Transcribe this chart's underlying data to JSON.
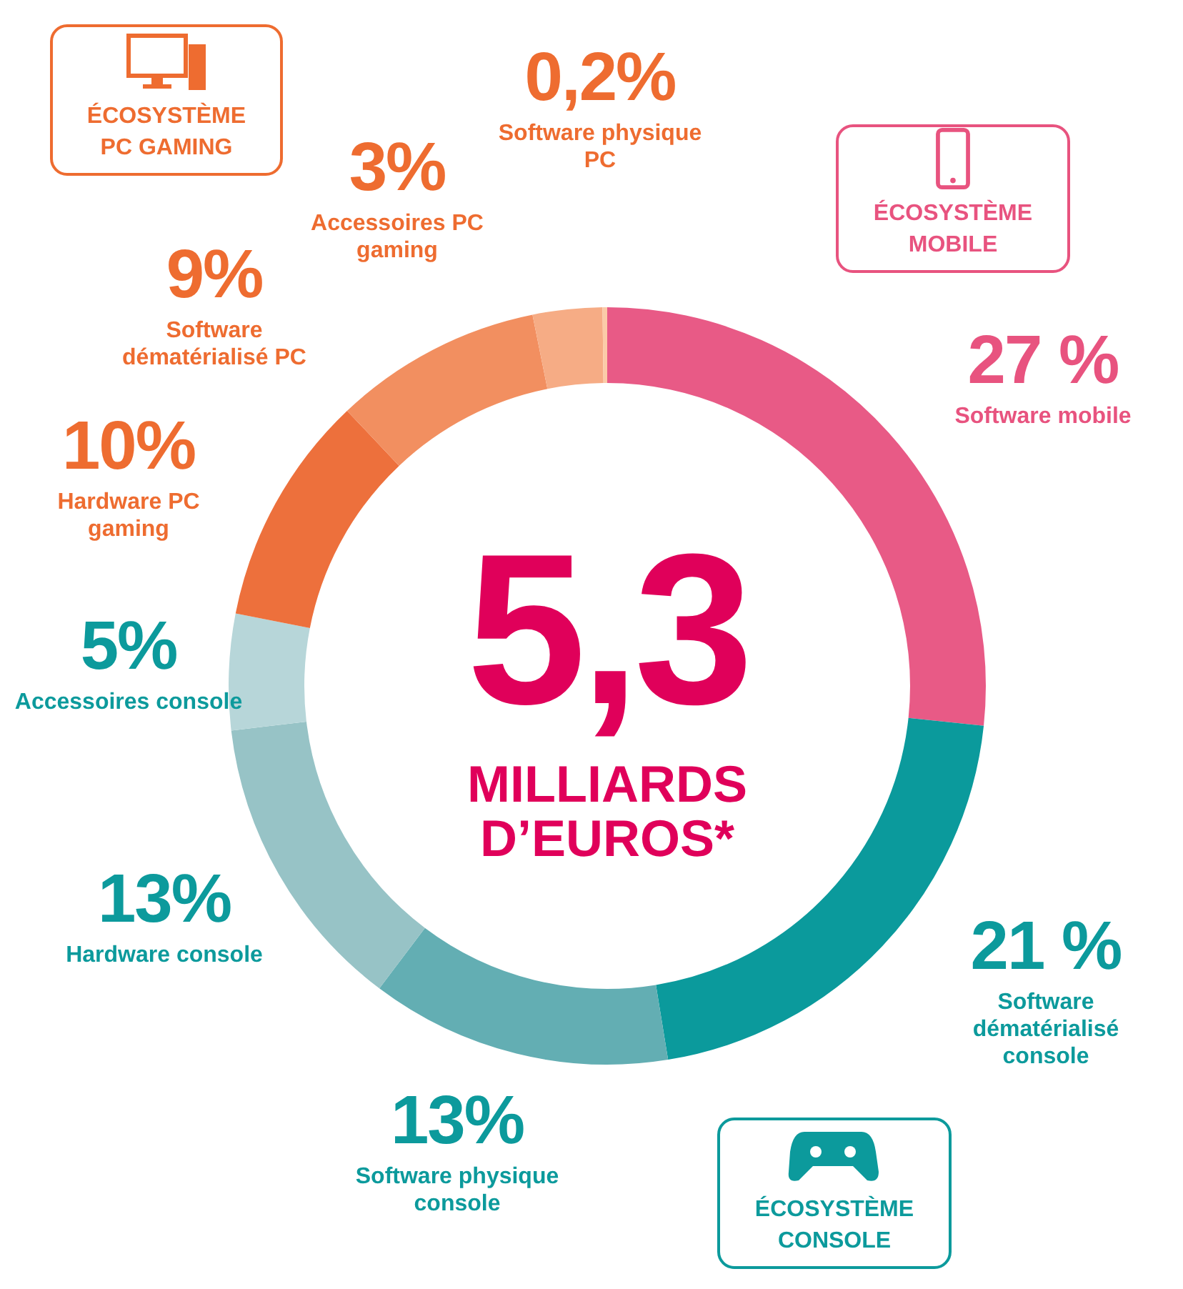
{
  "chart_data": {
    "type": "donut",
    "title": "5,3",
    "subtitle": "MILLIARDS D’EUROS*",
    "categories": [
      "Software mobile",
      "Software dématérialisé console",
      "Software physique console",
      "Hardware console",
      "Accessoires console",
      "Hardware PC gaming",
      "Software dématérialisé PC",
      "Accessoires PC gaming",
      "Software physique PC"
    ],
    "values": [
      27,
      21,
      13,
      13,
      5,
      10,
      9,
      3,
      0.2
    ],
    "value_labels": [
      "27 %",
      "21 %",
      "13%",
      "13%",
      "5%",
      "10%",
      "9%",
      "3%",
      "0,2%"
    ],
    "colors": [
      "#e85a86",
      "#0b9a9c",
      "#63aeb3",
      "#97c3c6",
      "#b7d6d9",
      "#ed703c",
      "#f28f60",
      "#f6ac85",
      "#fbcba8"
    ],
    "annotations": [
      "ÉCOSYSTÈME PC GAMING",
      "ÉCOSYSTÈME MOBILE",
      "ÉCOSYSTÈME CONSOLE"
    ],
    "legend": false
  }
}
